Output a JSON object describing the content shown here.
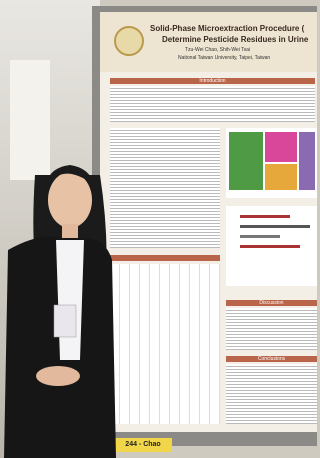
{
  "poster": {
    "title_line1": "Solid-Phase Microextraction Procedure (",
    "title_line2": "Determine Pesticide Residues in Urine",
    "authors": "Tzu-Wei Chao, Shih-Wei Tsai",
    "affiliation": "National Taiwan University, Taipei, Taiwan",
    "sections": [
      "Introduction",
      "Discussion",
      "Conclusions"
    ],
    "board_label": "244 - Chao"
  }
}
